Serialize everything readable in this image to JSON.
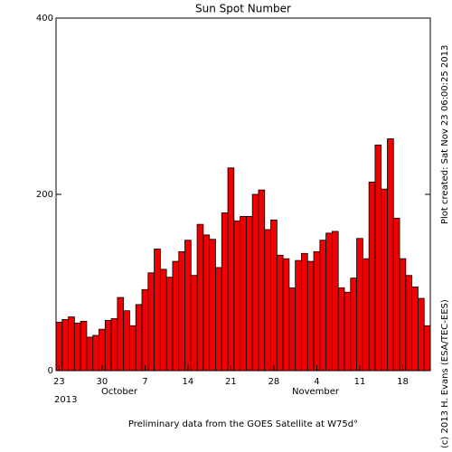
{
  "chart_data": {
    "type": "bar",
    "title": "Sun Spot Number",
    "categories": [
      "23",
      null,
      null,
      null,
      null,
      null,
      null,
      "30",
      null,
      null,
      null,
      null,
      null,
      null,
      "7",
      null,
      null,
      null,
      null,
      null,
      null,
      "14",
      null,
      null,
      null,
      null,
      null,
      null,
      "21",
      null,
      null,
      null,
      null,
      null,
      null,
      "28",
      null,
      null,
      null,
      null,
      null,
      null,
      "4",
      null,
      null,
      null,
      null,
      null,
      null,
      "11",
      null,
      null,
      null,
      null,
      null,
      null,
      "18",
      null,
      null,
      null,
      null
    ],
    "values": [
      55,
      58,
      61,
      54,
      56,
      38,
      40,
      47,
      57,
      59,
      83,
      68,
      51,
      75,
      92,
      111,
      138,
      115,
      106,
      124,
      135,
      148,
      108,
      166,
      154,
      149,
      117,
      179,
      230,
      170,
      175,
      175,
      200,
      205,
      160,
      171,
      131,
      127,
      94,
      125,
      133,
      124,
      135,
      148,
      156,
      158,
      94,
      89,
      105,
      150,
      127,
      214,
      256,
      206,
      263,
      173,
      127,
      108,
      95,
      82,
      51
    ],
    "color": "#ee0000",
    "ylim": [
      0,
      400
    ],
    "yticks": [
      0,
      200,
      400
    ],
    "months": [
      "October",
      "November"
    ],
    "year": "2013",
    "footer": "Preliminary data from the GOES Satellite at W75d°",
    "created": "Plot created: Sat Nov 23 06:00:25 2013",
    "copyright": "(c) 2013 H. Evans (ESA/TEC-EES)"
  }
}
